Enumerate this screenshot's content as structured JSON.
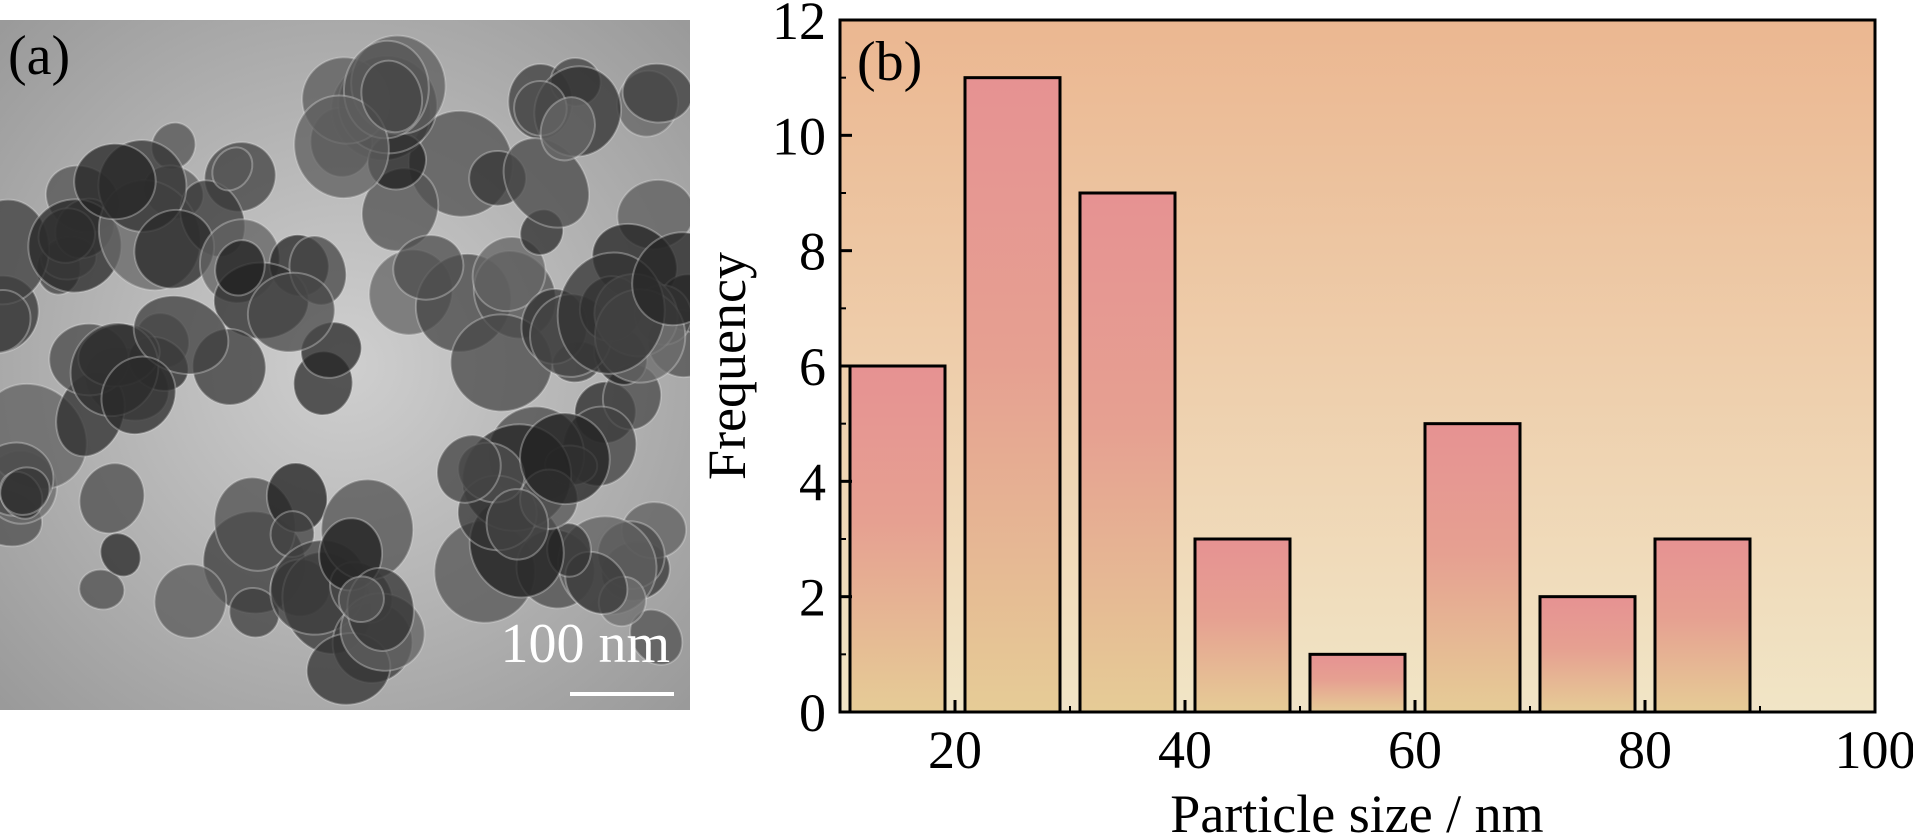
{
  "panel_a": {
    "label": "(a)",
    "scale_bar_label": "100 nm"
  },
  "panel_b": {
    "label": "(b)"
  },
  "colors": {
    "background_top": "#ebb791",
    "background_bottom": "#f1e5c6",
    "bar_top": "#e69292",
    "bar_bottom": "#e6cc96",
    "tem_background": "#b5b5b5",
    "particle_dark": "#2b2b2b"
  },
  "chart_data": {
    "type": "bar",
    "title": "",
    "xlabel": "Particle size / nm",
    "ylabel": "Frequency",
    "xlim": [
      10,
      100
    ],
    "ylim": [
      0,
      12
    ],
    "x_ticks": [
      20,
      40,
      60,
      80,
      100
    ],
    "y_ticks": [
      0,
      2,
      4,
      6,
      8,
      10,
      12
    ],
    "bins": [
      {
        "from": 10,
        "to": 20,
        "value": 6
      },
      {
        "from": 20,
        "to": 30,
        "value": 11
      },
      {
        "from": 30,
        "to": 40,
        "value": 9
      },
      {
        "from": 40,
        "to": 50,
        "value": 3
      },
      {
        "from": 50,
        "to": 60,
        "value": 1
      },
      {
        "from": 60,
        "to": 70,
        "value": 5
      },
      {
        "from": 70,
        "to": 80,
        "value": 2
      },
      {
        "from": 80,
        "to": 90,
        "value": 3
      }
    ],
    "grid": false,
    "legend": "none"
  }
}
